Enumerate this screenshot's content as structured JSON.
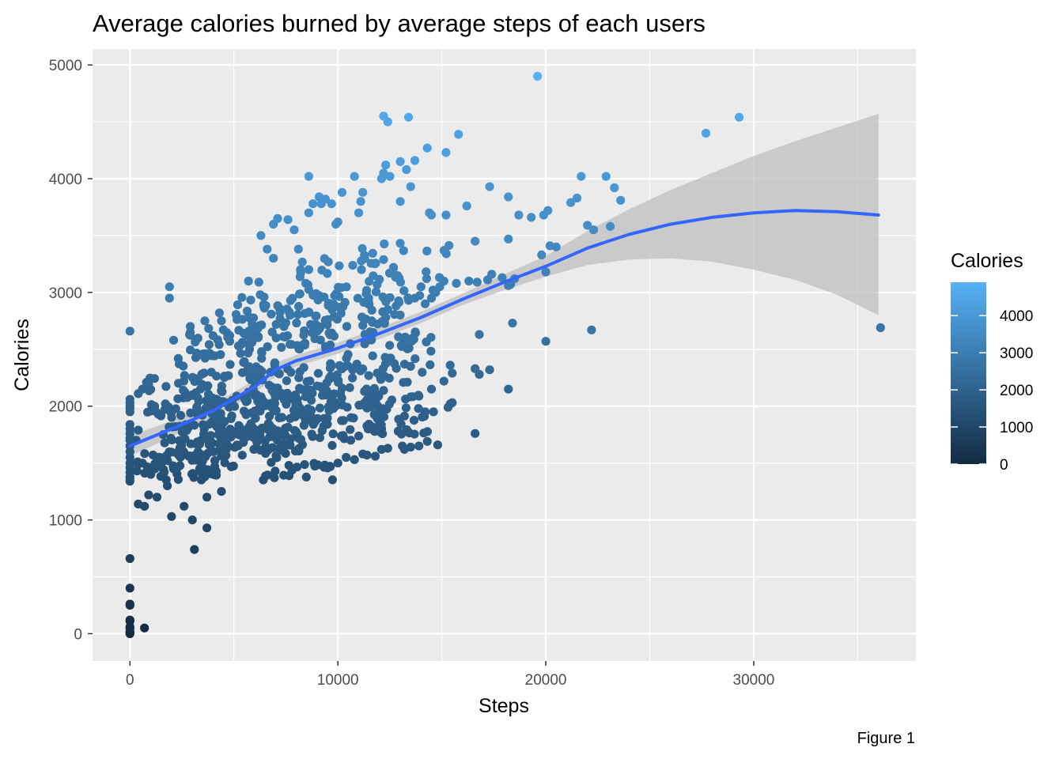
{
  "colors": {
    "panel": "#ebebeb",
    "grid_major": "#ffffff",
    "smooth_line": "#3366ff",
    "ribbon": "#bfbfbf",
    "low": "#132b43",
    "high": "#56b1f7"
  },
  "caption": "Figure 1",
  "chart_data": {
    "type": "scatter",
    "title": "Average calories burned by average steps of each users",
    "xlabel": "Steps",
    "ylabel": "Calories",
    "xlim": [
      -1800,
      37800
    ],
    "ylim": [
      -240,
      5140
    ],
    "x_ticks": [
      0,
      10000,
      20000,
      30000
    ],
    "x_tick_labels": [
      "0",
      "10000",
      "20000",
      "30000"
    ],
    "y_ticks": [
      0,
      1000,
      2000,
      3000,
      4000,
      5000
    ],
    "y_tick_labels": [
      "0",
      "1000",
      "2000",
      "3000",
      "4000",
      "5000"
    ],
    "grid": true,
    "color_encoding": "Calories",
    "legend": {
      "title": "Calories",
      "placement": "right",
      "ticks": [
        0,
        1000,
        2000,
        3000,
        4000
      ],
      "tick_labels": [
        "0",
        "1000",
        "2000",
        "3000",
        "4000"
      ],
      "range": [
        0,
        4900
      ]
    },
    "smooth": {
      "x": [
        0,
        2000,
        4000,
        6000,
        7000,
        8000,
        10000,
        12000,
        14000,
        16000,
        18000,
        20000,
        22000,
        24000,
        26000,
        28000,
        30000,
        32000,
        34000,
        36000
      ],
      "y": [
        1650,
        1800,
        1960,
        2170,
        2320,
        2400,
        2510,
        2640,
        2780,
        2940,
        3090,
        3230,
        3390,
        3510,
        3600,
        3660,
        3700,
        3720,
        3710,
        3680
      ],
      "lower": [
        1560,
        1730,
        1900,
        2110,
        2260,
        2350,
        2460,
        2590,
        2730,
        2890,
        3020,
        3140,
        3240,
        3290,
        3300,
        3270,
        3200,
        3110,
        2980,
        2800
      ],
      "upper": [
        1740,
        1870,
        2020,
        2230,
        2380,
        2450,
        2560,
        2690,
        2830,
        2990,
        3160,
        3320,
        3540,
        3730,
        3900,
        4050,
        4200,
        4330,
        4450,
        4570
      ]
    },
    "points": [
      [
        0,
        0
      ],
      [
        0,
        10
      ],
      [
        0,
        20
      ],
      [
        0,
        50
      ],
      [
        0,
        60
      ],
      [
        0,
        110
      ],
      [
        0,
        120
      ],
      [
        0,
        250
      ],
      [
        0,
        260
      ],
      [
        0,
        400
      ],
      [
        0,
        660
      ],
      [
        700,
        50
      ],
      [
        0,
        1340
      ],
      [
        0,
        1360
      ],
      [
        0,
        1380
      ],
      [
        0,
        1420
      ],
      [
        0,
        1460
      ],
      [
        0,
        1500
      ],
      [
        0,
        1550
      ],
      [
        0,
        1600
      ],
      [
        0,
        1650
      ],
      [
        0,
        1700
      ],
      [
        0,
        1720
      ],
      [
        0,
        1760
      ],
      [
        0,
        1800
      ],
      [
        0,
        1840
      ],
      [
        0,
        1950
      ],
      [
        0,
        1980
      ],
      [
        0,
        2000
      ],
      [
        0,
        2030
      ],
      [
        0,
        2060
      ],
      [
        0,
        2660
      ],
      [
        300,
        1700
      ],
      [
        400,
        1790
      ],
      [
        400,
        2110
      ],
      [
        600,
        2150
      ],
      [
        800,
        2210
      ],
      [
        600,
        1500
      ],
      [
        400,
        1140
      ],
      [
        700,
        1120
      ],
      [
        900,
        1220
      ],
      [
        1000,
        1400
      ],
      [
        1200,
        1450
      ],
      [
        2000,
        1030
      ],
      [
        3100,
        740
      ],
      [
        3000,
        1000
      ],
      [
        3700,
        930
      ],
      [
        3700,
        1200
      ],
      [
        2600,
        1120
      ],
      [
        1300,
        1200
      ],
      [
        1800,
        1300
      ],
      [
        4400,
        1250
      ],
      [
        1900,
        2950
      ],
      [
        1900,
        3050
      ],
      [
        2100,
        2580
      ],
      [
        2900,
        2650
      ],
      [
        2900,
        2700
      ],
      [
        3600,
        2750
      ],
      [
        4300,
        2820
      ],
      [
        4400,
        2750
      ],
      [
        4800,
        2620
      ],
      [
        5700,
        3100
      ],
      [
        6200,
        3090
      ],
      [
        6300,
        3500
      ],
      [
        6600,
        3380
      ],
      [
        6900,
        3300
      ],
      [
        6900,
        3600
      ],
      [
        7100,
        3650
      ],
      [
        7600,
        3640
      ],
      [
        7900,
        3550
      ],
      [
        8100,
        3380
      ],
      [
        8200,
        3200
      ],
      [
        8600,
        3700
      ],
      [
        8600,
        4020
      ],
      [
        8800,
        3780
      ],
      [
        9100,
        3840
      ],
      [
        9200,
        3780
      ],
      [
        9400,
        3820
      ],
      [
        9700,
        3780
      ],
      [
        9900,
        3600
      ],
      [
        10000,
        3620
      ],
      [
        10200,
        3880
      ],
      [
        10800,
        4020
      ],
      [
        11000,
        3700
      ],
      [
        11100,
        3800
      ],
      [
        11200,
        3880
      ],
      [
        12200,
        4550
      ],
      [
        12400,
        4500
      ],
      [
        12300,
        4120
      ],
      [
        12200,
        4050
      ],
      [
        12100,
        4000
      ],
      [
        12500,
        4020
      ],
      [
        13000,
        3800
      ],
      [
        13000,
        4150
      ],
      [
        13300,
        4080
      ],
      [
        13400,
        4540
      ],
      [
        13500,
        3930
      ],
      [
        13700,
        4160
      ],
      [
        14300,
        4270
      ],
      [
        14500,
        3680
      ],
      [
        14400,
        3700
      ],
      [
        15200,
        3680
      ],
      [
        15200,
        4230
      ],
      [
        15800,
        4390
      ],
      [
        16200,
        3760
      ],
      [
        16600,
        3450
      ],
      [
        17300,
        3930
      ],
      [
        18200,
        3840
      ],
      [
        18200,
        3470
      ],
      [
        18700,
        3680
      ],
      [
        19300,
        3660
      ],
      [
        19600,
        4900
      ],
      [
        19800,
        3330
      ],
      [
        19900,
        3680
      ],
      [
        20100,
        3720
      ],
      [
        20200,
        3410
      ],
      [
        20500,
        3400
      ],
      [
        21200,
        3790
      ],
      [
        21500,
        3830
      ],
      [
        21700,
        4020
      ],
      [
        22000,
        3590
      ],
      [
        22300,
        3550
      ],
      [
        22900,
        4020
      ],
      [
        23100,
        3580
      ],
      [
        23300,
        3920
      ],
      [
        23600,
        3810
      ],
      [
        27700,
        4400
      ],
      [
        29300,
        4540
      ],
      [
        16800,
        2630
      ],
      [
        16800,
        2280
      ],
      [
        17300,
        2320
      ],
      [
        18200,
        2150
      ],
      [
        18400,
        2730
      ],
      [
        20000,
        3180
      ],
      [
        20000,
        2570
      ],
      [
        22200,
        2670
      ],
      [
        16600,
        1760
      ],
      [
        16600,
        2330
      ],
      [
        36100,
        2690
      ],
      [
        15300,
        1990
      ],
      [
        15400,
        2020
      ],
      [
        15500,
        2030
      ],
      [
        15400,
        2360
      ],
      [
        15500,
        2290
      ],
      [
        15100,
        2220
      ],
      [
        14600,
        1950
      ],
      [
        14200,
        1950
      ],
      [
        14500,
        2150
      ],
      [
        14800,
        1660
      ],
      [
        14300,
        1690
      ],
      [
        13900,
        1650
      ],
      [
        13500,
        1640
      ],
      [
        13200,
        1620
      ],
      [
        13100,
        1650
      ],
      [
        12900,
        1780
      ],
      [
        12400,
        1630
      ],
      [
        12100,
        1620
      ],
      [
        11800,
        1560
      ],
      [
        11400,
        1570
      ],
      [
        11200,
        1580
      ],
      [
        10800,
        1530
      ],
      [
        10400,
        1550
      ],
      [
        10000,
        1500
      ],
      [
        15700,
        3080
      ],
      [
        16300,
        3100
      ],
      [
        16700,
        3090
      ],
      [
        17200,
        3110
      ],
      [
        17900,
        3130
      ],
      [
        18200,
        3060
      ],
      [
        18300,
        3070
      ],
      [
        18500,
        3120
      ],
      [
        17400,
        3160
      ],
      [
        14500,
        2950
      ],
      [
        14200,
        2900
      ],
      [
        14700,
        3000
      ],
      [
        14900,
        3050
      ],
      [
        15100,
        3100
      ],
      [
        14000,
        3050
      ],
      [
        13700,
        2950
      ],
      [
        13400,
        2930
      ],
      [
        12800,
        2880
      ],
      [
        12400,
        2850
      ],
      [
        12300,
        2780
      ]
    ],
    "clusters": [
      {
        "xmin": 300,
        "xmax": 5000,
        "ymin": 1350,
        "ymax": 1600,
        "n": 70
      },
      {
        "xmin": 1500,
        "xmax": 5500,
        "ymin": 1560,
        "ymax": 1850,
        "n": 60
      },
      {
        "xmin": 800,
        "xmax": 4500,
        "ymin": 1900,
        "ymax": 2250,
        "n": 60
      },
      {
        "xmin": 2300,
        "xmax": 6500,
        "ymin": 2250,
        "ymax": 2700,
        "n": 60
      },
      {
        "xmin": 3500,
        "xmax": 8500,
        "ymin": 1600,
        "ymax": 2100,
        "n": 110
      },
      {
        "xmin": 5500,
        "xmax": 12500,
        "ymin": 1700,
        "ymax": 2400,
        "n": 170
      },
      {
        "xmin": 5000,
        "xmax": 10000,
        "ymin": 2500,
        "ymax": 3000,
        "n": 90
      },
      {
        "xmin": 8000,
        "xmax": 13000,
        "ymin": 2700,
        "ymax": 3300,
        "n": 70
      },
      {
        "xmin": 10000,
        "xmax": 14500,
        "ymin": 2200,
        "ymax": 2700,
        "n": 50
      },
      {
        "xmin": 6000,
        "xmax": 9800,
        "ymin": 1350,
        "ymax": 1700,
        "n": 35
      },
      {
        "xmin": 11000,
        "xmax": 14500,
        "ymin": 1750,
        "ymax": 2100,
        "n": 35
      },
      {
        "xmin": 11000,
        "xmax": 15500,
        "ymin": 2950,
        "ymax": 3450,
        "n": 30
      }
    ]
  }
}
